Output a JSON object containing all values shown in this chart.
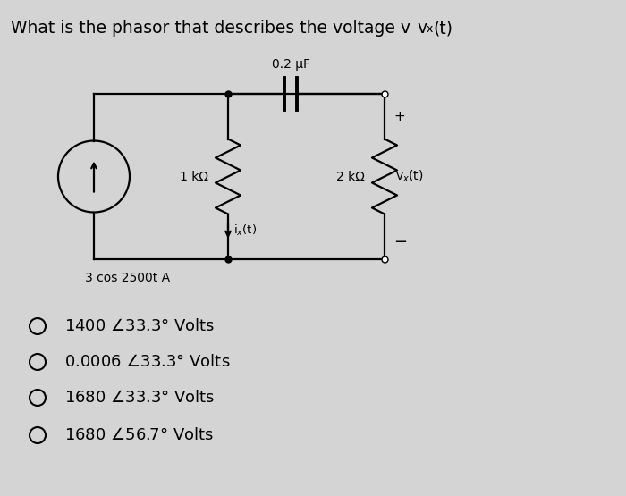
{
  "background_color": "#d4d4d4",
  "title_part1": "What is the phasor that describes the voltage v",
  "title_vx": "x",
  "title_part2": "(t)",
  "cap_label": "0.2 μF",
  "r1_label": "1 kΩ",
  "r2_label": "2 kΩ",
  "vx_label": "vₓ(t)",
  "ix_label": "iₓ(t)",
  "source_label": "3 cos 2500t A",
  "plus_sign": "+",
  "minus_sign": "−",
  "options": [
    "1400 ∳33.3° Volts",
    "0.0006 ∳33.3° Volts",
    "1680 ∳33.3° Volts",
    "1680 ∳56.7° Volts"
  ],
  "lw": 1.6,
  "figw": 7.0,
  "figh": 5.55,
  "dpi": 100
}
